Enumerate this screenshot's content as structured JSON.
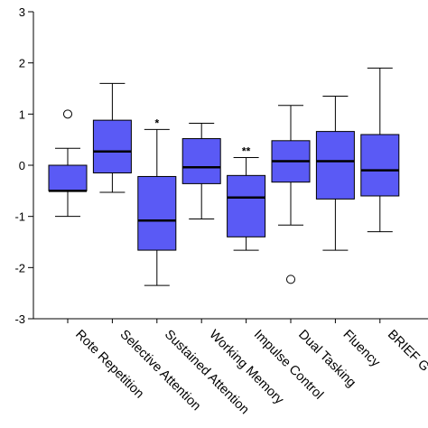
{
  "chart_data": {
    "type": "boxplot",
    "title": "",
    "xlabel": "",
    "ylabel": "",
    "ylim": [
      -3,
      3
    ],
    "yticks": [
      -3,
      -2,
      -1,
      0,
      1,
      2,
      3
    ],
    "yticklabels": [
      "-3",
      "-2",
      "-1",
      "0",
      "1",
      "2",
      "3"
    ],
    "grid": false,
    "box_color": "#5a5af5",
    "categories": [
      "Rote Repetition",
      "Selective Attention",
      "Sustained Attention",
      "Working Memory",
      "Impulse Control",
      "Dual Tasking",
      "Fluency",
      "BRIEF G"
    ],
    "boxes": [
      {
        "whisker_low": -1.0,
        "q1": -0.5,
        "median": -0.5,
        "q3": 0.0,
        "whisker_high": 0.33,
        "outliers": [
          1.0
        ],
        "annotation": ""
      },
      {
        "whisker_low": -0.53,
        "q1": -0.15,
        "median": 0.27,
        "q3": 0.88,
        "whisker_high": 1.6,
        "outliers": [],
        "annotation": ""
      },
      {
        "whisker_low": -2.35,
        "q1": -1.66,
        "median": -1.08,
        "q3": -0.22,
        "whisker_high": 0.7,
        "outliers": [],
        "annotation": "*"
      },
      {
        "whisker_low": -1.05,
        "q1": -0.36,
        "median": -0.04,
        "q3": 0.52,
        "whisker_high": 0.82,
        "outliers": [],
        "annotation": ""
      },
      {
        "whisker_low": -1.66,
        "q1": -1.4,
        "median": -0.63,
        "q3": -0.2,
        "whisker_high": 0.15,
        "outliers": [],
        "annotation": "**"
      },
      {
        "whisker_low": -1.17,
        "q1": -0.33,
        "median": 0.08,
        "q3": 0.48,
        "whisker_high": 1.17,
        "outliers": [
          -2.23
        ],
        "annotation": ""
      },
      {
        "whisker_low": -1.66,
        "q1": -0.66,
        "median": 0.08,
        "q3": 0.66,
        "whisker_high": 1.35,
        "outliers": [],
        "annotation": ""
      },
      {
        "whisker_low": -1.3,
        "q1": -0.6,
        "median": -0.1,
        "q3": 0.6,
        "whisker_high": 1.9,
        "outliers": [],
        "annotation": ""
      }
    ]
  }
}
